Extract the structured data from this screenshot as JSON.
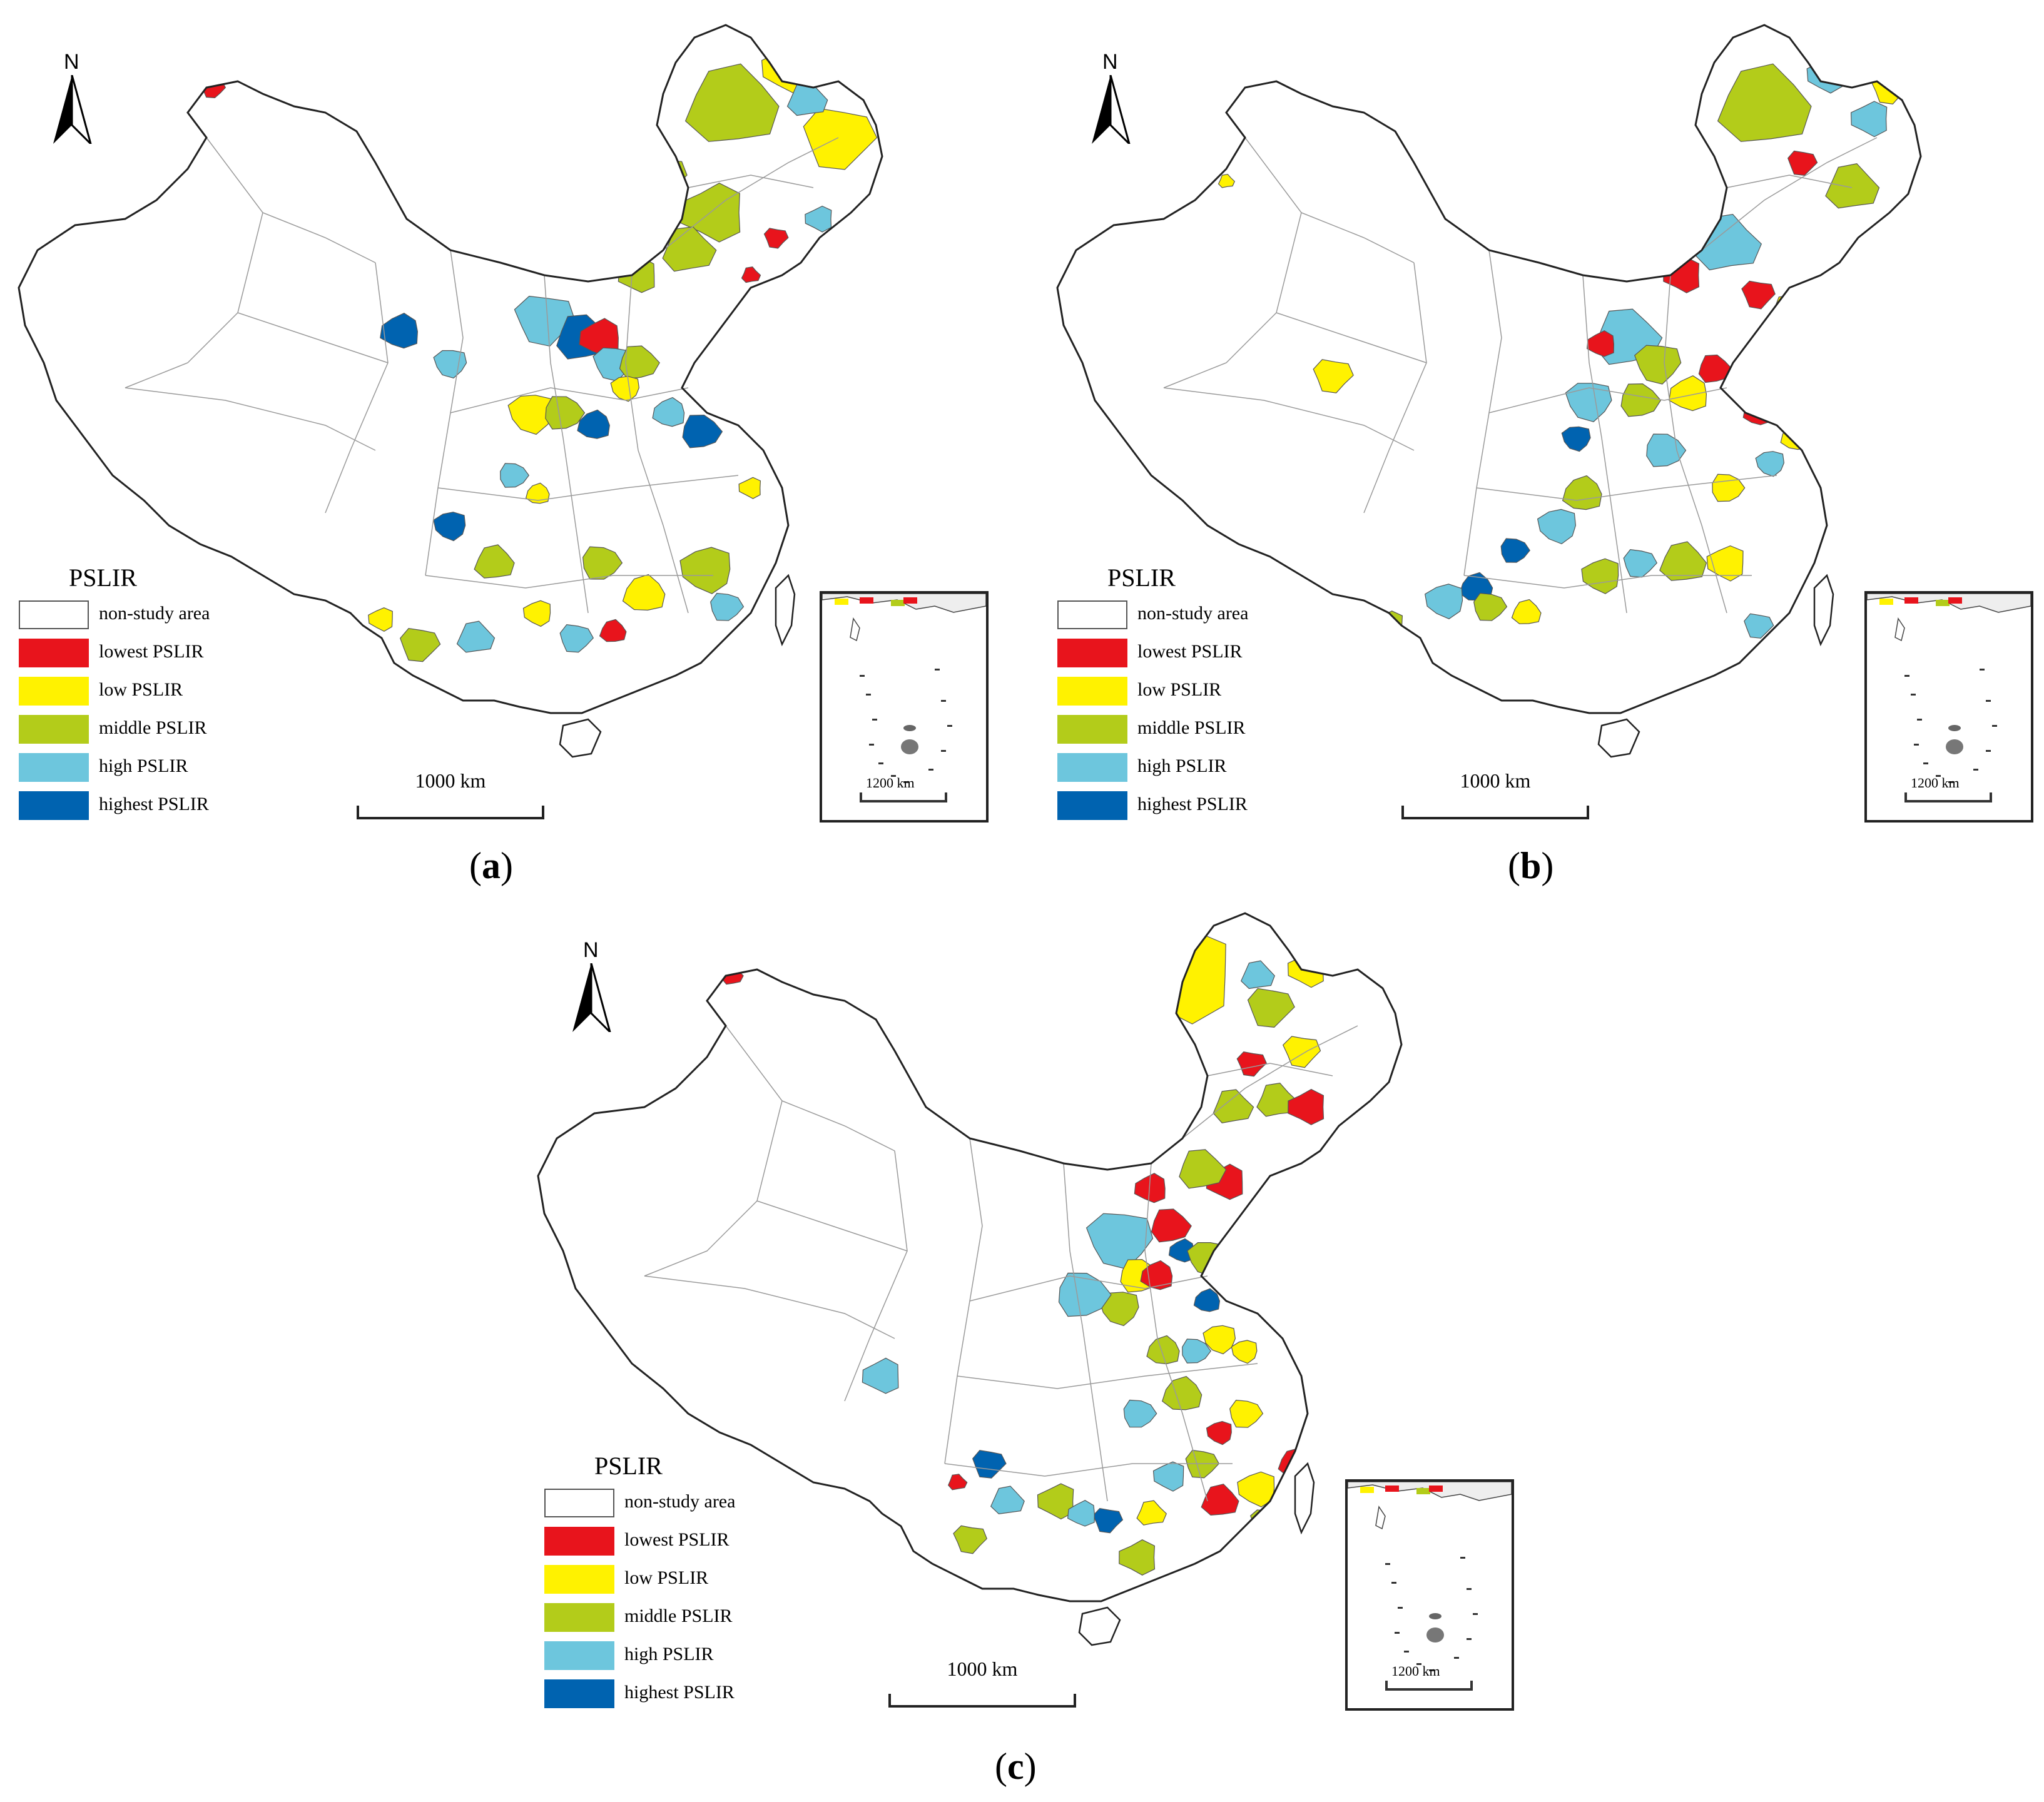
{
  "colors": {
    "lowest": "#e8141c",
    "low": "#fff200",
    "middle": "#b3cc1a",
    "high": "#6dc6dd",
    "highest": "#0063b0",
    "boundary": "#222222",
    "internal_boundary": "#9a9a9a"
  },
  "north_label": "N",
  "legend": {
    "title": "PSLIR",
    "items": [
      {
        "key": "nonstudy",
        "label": "non-study area",
        "color": "#ffffff"
      },
      {
        "key": "lowest",
        "label": "lowest PSLIR",
        "color": "#e8141c"
      },
      {
        "key": "low",
        "label": "low PSLIR",
        "color": "#fff200"
      },
      {
        "key": "middle",
        "label": "middle PSLIR",
        "color": "#b3cc1a"
      },
      {
        "key": "high",
        "label": "high PSLIR",
        "color": "#6dc6dd"
      },
      {
        "key": "highest",
        "label": "highest PSLIR",
        "color": "#0063b0"
      }
    ]
  },
  "scale_main": "1000 km",
  "scale_inset": "1200 km",
  "panels": [
    {
      "id": "a",
      "label": "a"
    },
    {
      "id": "b",
      "label": "b"
    },
    {
      "id": "c",
      "label": "c"
    }
  ]
}
